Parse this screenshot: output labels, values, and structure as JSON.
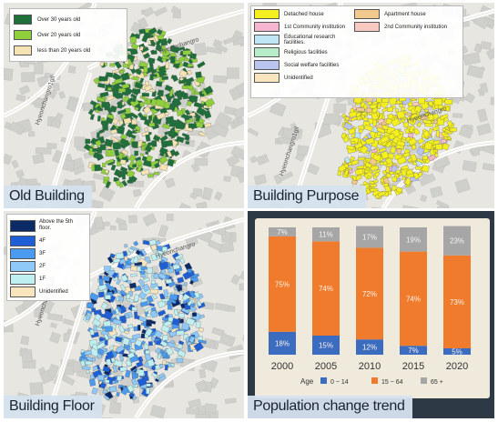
{
  "panels": {
    "old_building": {
      "caption": "Old Building",
      "street_name": "Hyeonchangro",
      "street_name_2": "Hyeonchangro1gil",
      "legend": [
        {
          "label": "Over 30 years old",
          "color": "#1f6f3a"
        },
        {
          "label": "Over 20 years old",
          "color": "#8fcf3c"
        },
        {
          "label": "less than 20 years old",
          "color": "#f6e3b4"
        }
      ]
    },
    "building_purpose": {
      "caption": "Building Purpose",
      "street_name": "Hyeonchangro",
      "street_name_2": "Hyeonchangro1gil",
      "legend": [
        {
          "label": "Detached house",
          "color": "#f4ef1e"
        },
        {
          "label": "Apartment house",
          "color": "#f2c98c"
        },
        {
          "label": "1st Community institution",
          "color": "#f4b6cf"
        },
        {
          "label": "2nd Community institution",
          "color": "#f7c9c0"
        },
        {
          "label": "Educational research facilities.",
          "color": "#bfe6f5"
        },
        {
          "label": "Religious facilities",
          "color": "#b7ecc9"
        },
        {
          "label": "Social welfare facilities",
          "color": "#b9c4ef"
        },
        {
          "label": "Unidentified",
          "color": "#f8e4bd"
        }
      ]
    },
    "building_floor": {
      "caption": "Building Floor",
      "street_name": "Hyeonchangro",
      "street_name_2": "Hyeonchangro1gil",
      "legend": [
        {
          "label": "Above the 5th floor.",
          "color": "#0b2a66"
        },
        {
          "label": "4F",
          "color": "#1f5fd6"
        },
        {
          "label": "3F",
          "color": "#4a9bf0"
        },
        {
          "label": "2F",
          "color": "#8fc9f7"
        },
        {
          "label": "1F",
          "color": "#bfeff0"
        },
        {
          "label": "Unidentified",
          "color": "#f8e4bd"
        }
      ]
    },
    "population": {
      "caption": "Population change trend"
    }
  },
  "chart_data": {
    "type": "bar",
    "stacked": true,
    "categories": [
      "2000",
      "2005",
      "2010",
      "2015",
      "2020"
    ],
    "series": [
      {
        "name": "0 ~ 14",
        "color": "#3b6cc0",
        "values": [
          18,
          15,
          12,
          7,
          5
        ],
        "labels": [
          "18%",
          "15%",
          "12%",
          "7%",
          "5%"
        ]
      },
      {
        "name": "15 ~ 64",
        "color": "#f07b2c",
        "values": [
          75,
          74,
          72,
          74,
          73
        ],
        "labels": [
          "75%",
          "74%",
          "72%",
          "74%",
          "73%"
        ]
      },
      {
        "name": "65 +",
        "color": "#a6a6a6",
        "values": [
          7,
          11,
          17,
          19,
          23
        ],
        "labels": [
          "7%",
          "11%",
          "17%",
          "19%",
          "23%"
        ]
      }
    ],
    "legend_title": "Age",
    "ylim": [
      0,
      100
    ],
    "legend_position": "bottom"
  }
}
